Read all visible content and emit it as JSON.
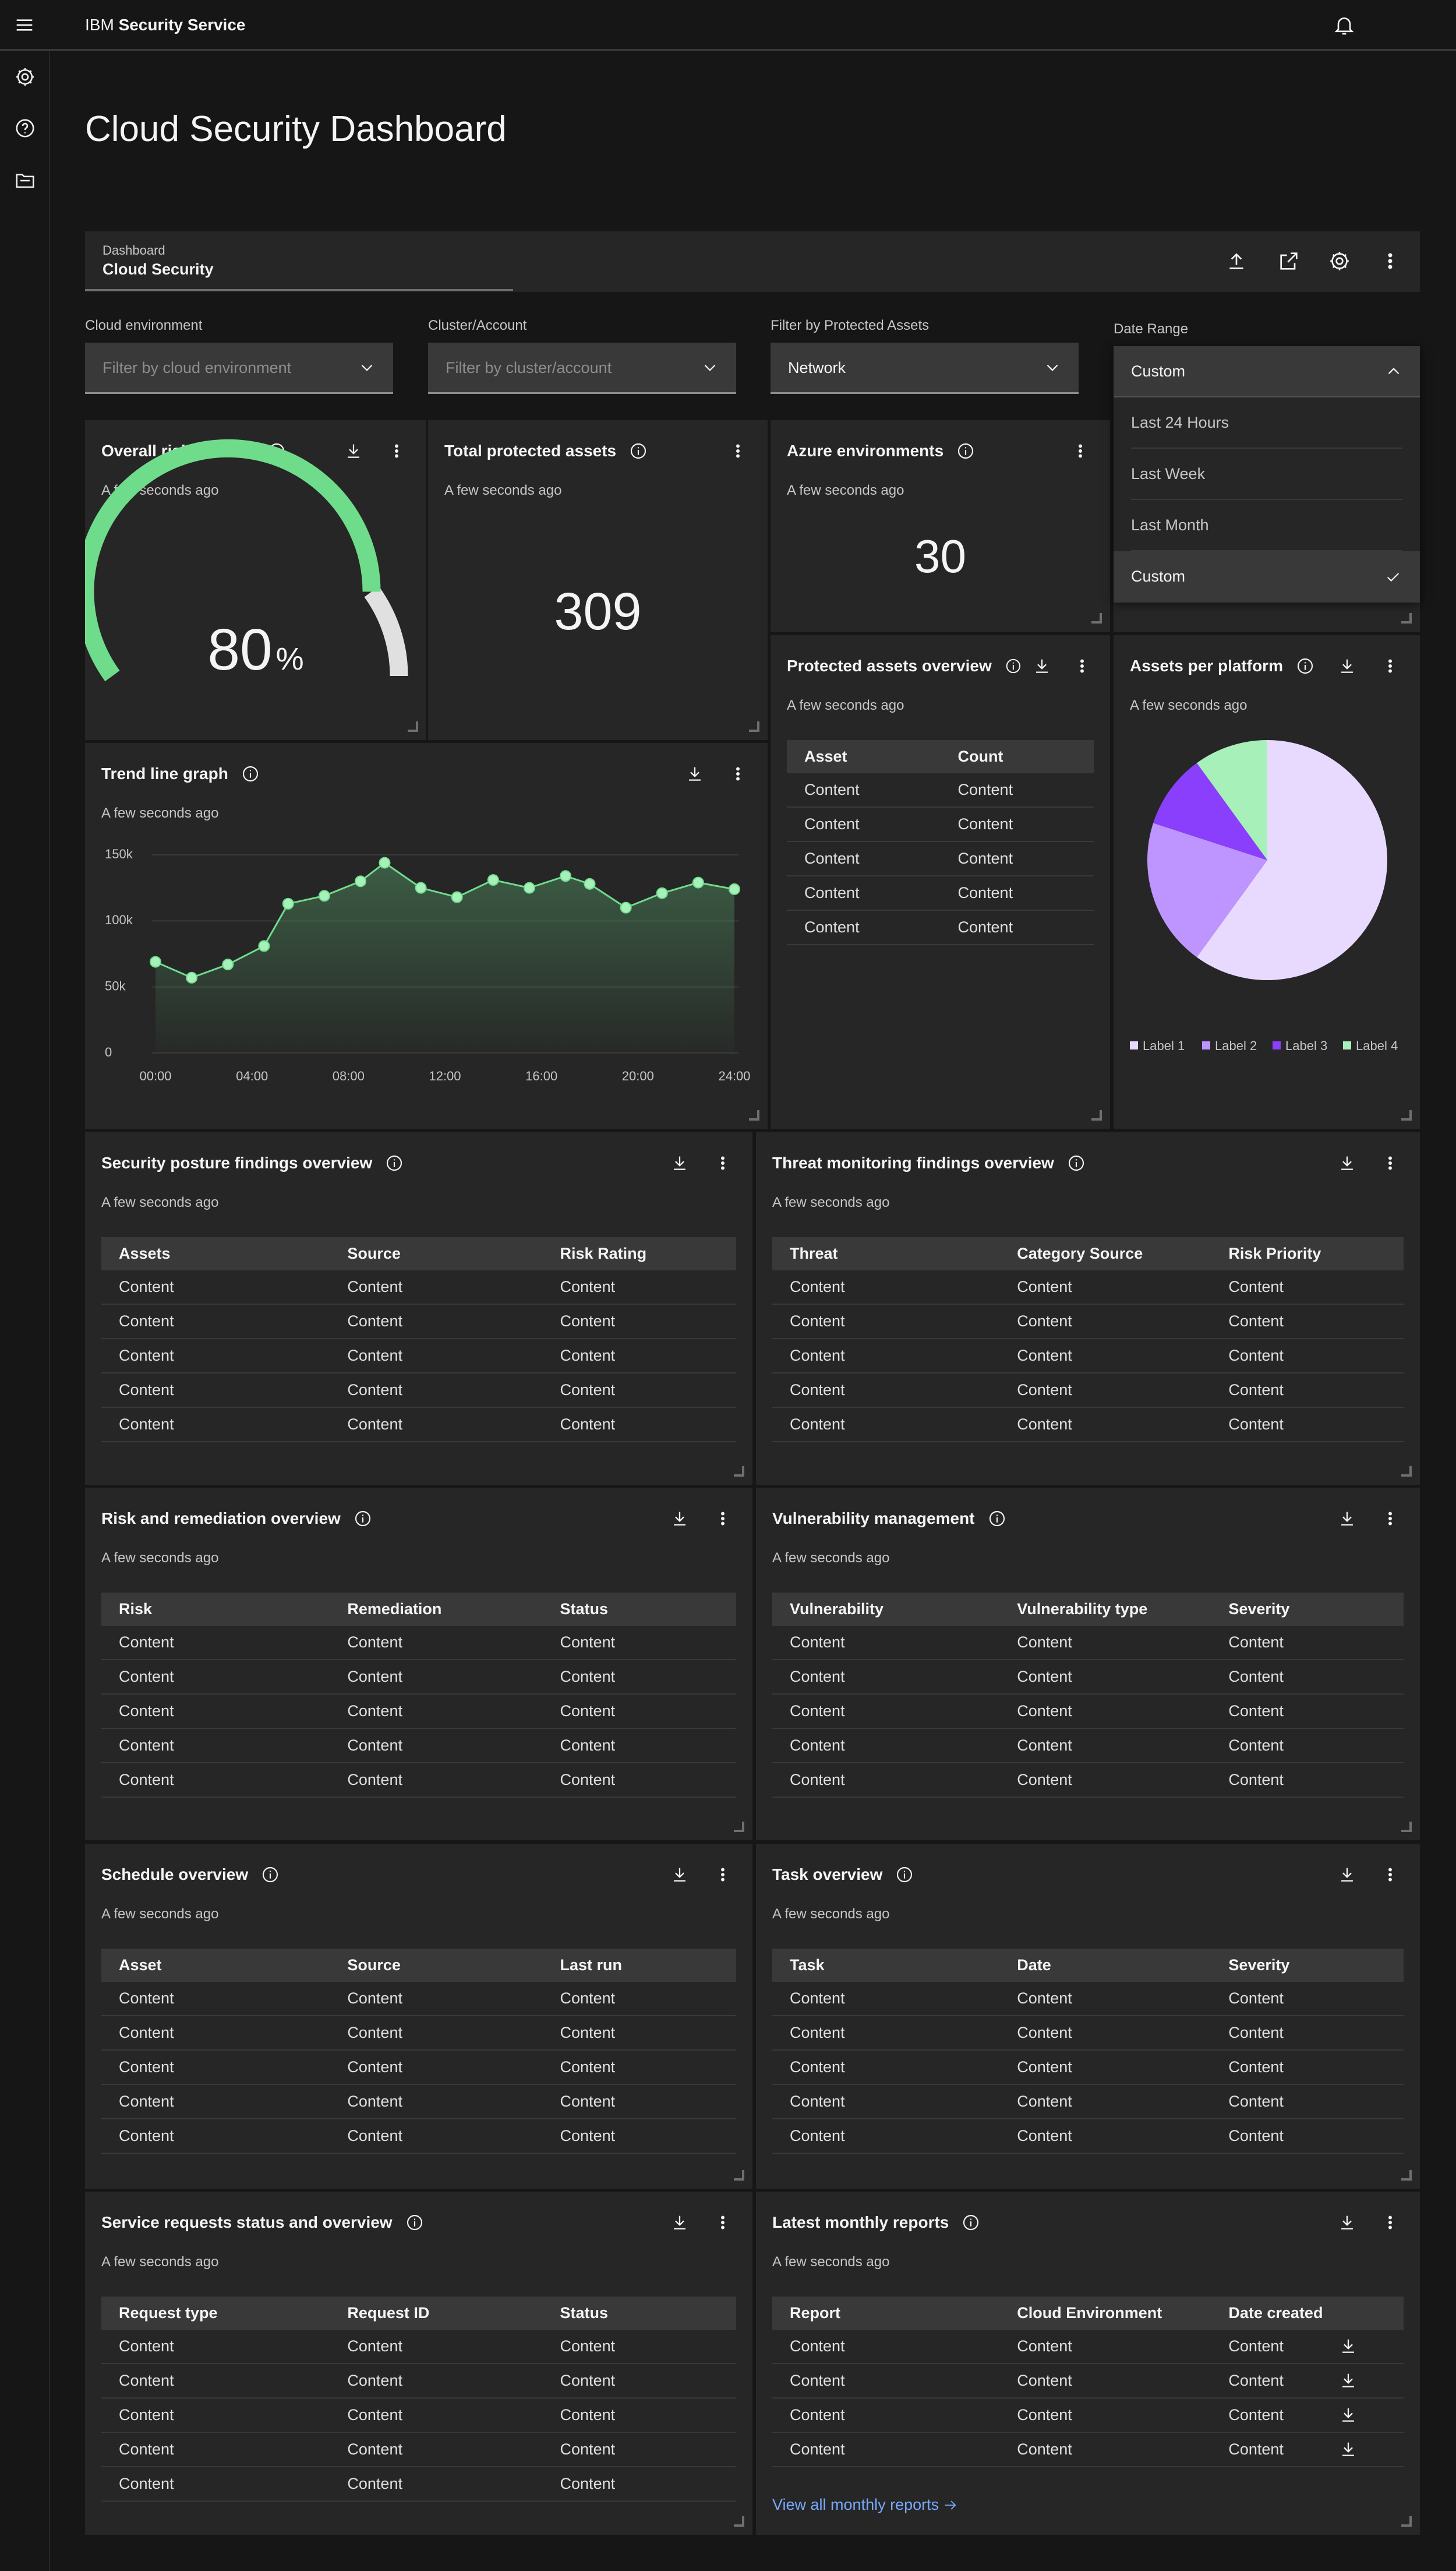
{
  "header": {
    "brand_prefix": "IBM",
    "brand_name": "Security Service"
  },
  "page_title": "Cloud Security Dashboard",
  "breadcrumb": {
    "parent": "Dashboard",
    "current": "Cloud Security"
  },
  "filters": [
    {
      "label": "Cloud environment",
      "placeholder": "Filter by cloud environment"
    },
    {
      "label": "Cluster/Account",
      "placeholder": "Filter by cluster/account"
    },
    {
      "label": "Filter by Protected Assets",
      "value": "Network"
    }
  ],
  "date_range": {
    "label": "Date Range",
    "selected": "Custom",
    "options": [
      "Last 24 Hours",
      "Last Week",
      "Last Month",
      "Custom"
    ]
  },
  "risk_posture": {
    "title": "Overall risk posture",
    "timestamp": "A few seconds ago",
    "value": 80,
    "unit": "%",
    "color": "#6fdc8c"
  },
  "total_assets": {
    "title": "Total protected assets",
    "timestamp": "A few seconds ago",
    "value": 309
  },
  "azure": {
    "title": "Azure environments",
    "timestamp": "A few seconds ago",
    "value": 30
  },
  "trend": {
    "type": "line",
    "title": "Trend line graph",
    "timestamp": "A few seconds ago",
    "x": [
      0,
      1.5,
      3,
      4.5,
      5.5,
      7,
      8.5,
      9.5,
      11,
      12.5,
      14,
      15.5,
      17,
      18,
      19.5,
      21,
      22.5,
      24
    ],
    "values": [
      69000,
      57000,
      67000,
      81000,
      113000,
      119000,
      130000,
      144000,
      125000,
      118000,
      131000,
      125000,
      134000,
      128000,
      110000,
      121000,
      129000,
      124000
    ],
    "xlim": [
      0,
      24
    ],
    "xticks": [
      {
        "value": 0,
        "label": "00:00"
      },
      {
        "value": 4,
        "label": "04:00"
      },
      {
        "value": 8,
        "label": "08:00"
      },
      {
        "value": 12,
        "label": "12:00"
      },
      {
        "value": 16,
        "label": "16:00"
      },
      {
        "value": 20,
        "label": "20:00"
      },
      {
        "value": 24,
        "label": "24:00"
      }
    ],
    "ylim": [
      0,
      150000
    ],
    "yticks": [
      0,
      {
        "value": 50000,
        "label": "50k"
      },
      {
        "value": 100000,
        "label": "100k"
      },
      {
        "value": 150000,
        "label": "150k"
      }
    ],
    "grid": true,
    "color": "#6fdc8c"
  },
  "protected_overview": {
    "title": "Protected assets overview",
    "timestamp": "A few seconds ago",
    "columns": [
      "Asset",
      "Count"
    ],
    "rows": [
      [
        "Content",
        "Content"
      ],
      [
        "Content",
        "Content"
      ],
      [
        "Content",
        "Content"
      ],
      [
        "Content",
        "Content"
      ],
      [
        "Content",
        "Content"
      ]
    ]
  },
  "platforms": {
    "type": "pie",
    "title": "Assets per platform",
    "timestamp": "A few seconds ago",
    "series": [
      {
        "name": "Label 1",
        "value": 60,
        "color": "#e8daff"
      },
      {
        "name": "Label 2",
        "value": 20,
        "color": "#be95ff"
      },
      {
        "name": "Label 3",
        "value": 10,
        "color": "#8a3ffc"
      },
      {
        "name": "Label 4",
        "value": 10,
        "color": "#a7f0ba"
      }
    ]
  },
  "tables": [
    {
      "title": "Security posture findings overview",
      "timestamp": "A few seconds ago",
      "columns": [
        "Assets",
        "Source",
        "Risk Rating"
      ],
      "rows": [
        [
          "Content",
          "Content",
          "Content"
        ],
        [
          "Content",
          "Content",
          "Content"
        ],
        [
          "Content",
          "Content",
          "Content"
        ],
        [
          "Content",
          "Content",
          "Content"
        ],
        [
          "Content",
          "Content",
          "Content"
        ]
      ]
    },
    {
      "title": "Threat monitoring findings overview",
      "timestamp": "A few seconds ago",
      "columns": [
        "Threat",
        "Category Source",
        "Risk Priority"
      ],
      "rows": [
        [
          "Content",
          "Content",
          "Content"
        ],
        [
          "Content",
          "Content",
          "Content"
        ],
        [
          "Content",
          "Content",
          "Content"
        ],
        [
          "Content",
          "Content",
          "Content"
        ],
        [
          "Content",
          "Content",
          "Content"
        ]
      ]
    },
    {
      "title": "Risk and remediation overview",
      "timestamp": "A few seconds ago",
      "columns": [
        "Risk",
        "Remediation",
        "Status"
      ],
      "rows": [
        [
          "Content",
          "Content",
          "Content"
        ],
        [
          "Content",
          "Content",
          "Content"
        ],
        [
          "Content",
          "Content",
          "Content"
        ],
        [
          "Content",
          "Content",
          "Content"
        ],
        [
          "Content",
          "Content",
          "Content"
        ]
      ]
    },
    {
      "title": "Vulnerability management",
      "timestamp": "A few seconds ago",
      "columns": [
        "Vulnerability",
        "Vulnerability type",
        "Severity"
      ],
      "rows": [
        [
          "Content",
          "Content",
          "Content"
        ],
        [
          "Content",
          "Content",
          "Content"
        ],
        [
          "Content",
          "Content",
          "Content"
        ],
        [
          "Content",
          "Content",
          "Content"
        ],
        [
          "Content",
          "Content",
          "Content"
        ]
      ]
    },
    {
      "title": "Schedule overview",
      "timestamp": "A few seconds ago",
      "columns": [
        "Asset",
        "Source",
        "Last run"
      ],
      "rows": [
        [
          "Content",
          "Content",
          "Content"
        ],
        [
          "Content",
          "Content",
          "Content"
        ],
        [
          "Content",
          "Content",
          "Content"
        ],
        [
          "Content",
          "Content",
          "Content"
        ],
        [
          "Content",
          "Content",
          "Content"
        ]
      ]
    },
    {
      "title": "Task overview",
      "timestamp": "A few seconds ago",
      "columns": [
        "Task",
        "Date",
        "Severity"
      ],
      "rows": [
        [
          "Content",
          "Content",
          "Content"
        ],
        [
          "Content",
          "Content",
          "Content"
        ],
        [
          "Content",
          "Content",
          "Content"
        ],
        [
          "Content",
          "Content",
          "Content"
        ],
        [
          "Content",
          "Content",
          "Content"
        ]
      ]
    },
    {
      "title": "Service requests status and overview",
      "timestamp": "A few seconds ago",
      "columns": [
        "Request type",
        "Request ID",
        "Status"
      ],
      "rows": [
        [
          "Content",
          "Content",
          "Content"
        ],
        [
          "Content",
          "Content",
          "Content"
        ],
        [
          "Content",
          "Content",
          "Content"
        ],
        [
          "Content",
          "Content",
          "Content"
        ],
        [
          "Content",
          "Content",
          "Content"
        ]
      ]
    },
    {
      "title": "Latest monthly reports",
      "timestamp": "A few seconds ago",
      "columns": [
        "Report",
        "Cloud Environment",
        "Date created"
      ],
      "rows": [
        [
          "Content",
          "Content",
          "Content"
        ],
        [
          "Content",
          "Content",
          "Content"
        ],
        [
          "Content",
          "Content",
          "Content"
        ],
        [
          "Content",
          "Content",
          "Content"
        ]
      ],
      "link": "View all monthly reports"
    }
  ]
}
